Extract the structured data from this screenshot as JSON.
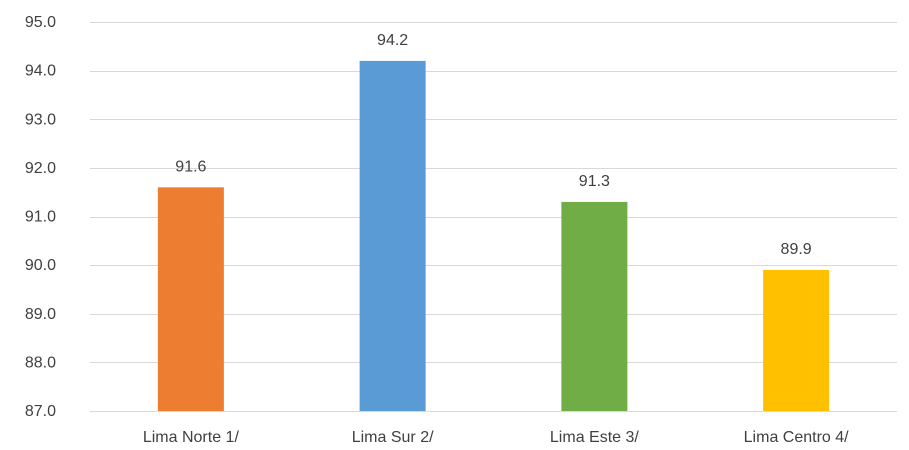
{
  "chart_data": {
    "type": "bar",
    "title": "",
    "xlabel": "",
    "ylabel": "",
    "categories": [
      "Lima Norte 1/",
      "Lima Sur 2/",
      "Lima Este 3/",
      "Lima Centro 4/"
    ],
    "values": [
      91.6,
      94.2,
      91.3,
      89.9
    ],
    "value_labels": [
      "91.6",
      "94.2",
      "91.3",
      "89.9"
    ],
    "bar_colors": [
      "#ed7d31",
      "#5b9bd5",
      "#70ad47",
      "#ffc000"
    ],
    "ylim": [
      87.0,
      95.0
    ],
    "yticks": [
      87.0,
      88.0,
      89.0,
      90.0,
      91.0,
      92.0,
      93.0,
      94.0,
      95.0
    ],
    "ytick_labels": [
      "87.0",
      "88.0",
      "89.0",
      "90.0",
      "91.0",
      "92.0",
      "93.0",
      "94.0",
      "95.0"
    ],
    "grid": true,
    "legend": "none"
  }
}
